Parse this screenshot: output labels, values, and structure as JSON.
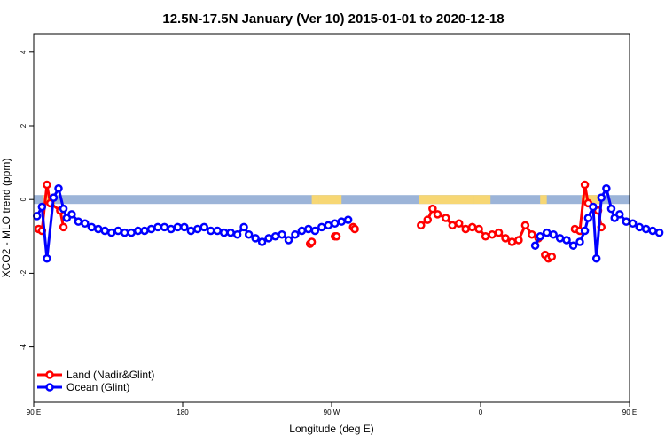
{
  "chart_data": {
    "type": "line",
    "title": "12.5N-17.5N January (Ver 10)   2015-01-01 to 2020-12-18",
    "xlabel": "Longitude (deg E)",
    "ylabel": "XCO2 - MLO trend (ppm)",
    "xlim": [
      90,
      450
    ],
    "ylim": [
      -5.5,
      4.5
    ],
    "x_ticks": [
      {
        "value": 90,
        "label": "90 E"
      },
      {
        "value": 180,
        "label": "180"
      },
      {
        "value": 270,
        "label": "90 W"
      },
      {
        "value": 360,
        "label": "0"
      },
      {
        "value": 450,
        "label": "90 E"
      },
      {
        "value": 540,
        "label": "180"
      }
    ],
    "y_ticks": [
      -4,
      -2,
      0,
      2,
      4
    ],
    "legend": {
      "position": "bottom-left",
      "entries": [
        {
          "label": "Land (Nadir&Glint)",
          "color": "#ff0000"
        },
        {
          "label": "Ocean (Glint)",
          "color": "#0000ff"
        }
      ]
    },
    "series": [
      {
        "name": "Land (Nadir&Glint)",
        "color": "#ff0000",
        "segments": [
          [
            [
              93,
              -0.8
            ],
            [
              95,
              -0.85
            ],
            [
              98,
              0.4
            ],
            [
              100,
              -0.1
            ],
            [
              106,
              -0.3
            ],
            [
              108,
              -0.75
            ]
          ],
          [
            [
              257,
              -1.2
            ],
            [
              258,
              -1.15
            ]
          ],
          [
            [
              272,
              -1.0
            ],
            [
              273,
              -1.0
            ]
          ],
          [
            [
              283,
              -0.75
            ],
            [
              284,
              -0.8
            ]
          ],
          [
            [
              324,
              -0.7
            ],
            [
              328,
              -0.55
            ],
            [
              331,
              -0.25
            ],
            [
              334,
              -0.4
            ],
            [
              339,
              -0.5
            ],
            [
              343,
              -0.7
            ],
            [
              347,
              -0.65
            ],
            [
              351,
              -0.8
            ],
            [
              355,
              -0.75
            ],
            [
              359,
              -0.8
            ],
            [
              363,
              -1.0
            ],
            [
              367,
              -0.95
            ],
            [
              371,
              -0.9
            ],
            [
              375,
              -1.05
            ],
            [
              379,
              -1.15
            ],
            [
              383,
              -1.1
            ],
            [
              387,
              -0.7
            ],
            [
              391,
              -0.95
            ],
            [
              395,
              -1.05
            ]
          ],
          [
            [
              399,
              -1.5
            ],
            [
              401,
              -1.6
            ],
            [
              403,
              -1.55
            ]
          ],
          [
            [
              417,
              -0.8
            ],
            [
              420,
              -0.85
            ],
            [
              423,
              0.4
            ],
            [
              425,
              -0.1
            ],
            [
              431,
              -0.3
            ],
            [
              433,
              -0.75
            ]
          ]
        ]
      },
      {
        "name": "Ocean (Glint)",
        "color": "#0000ff",
        "segments": [
          [
            [
              92,
              -0.45
            ],
            [
              95,
              -0.2
            ],
            [
              98,
              -1.6
            ],
            [
              102,
              0.05
            ],
            [
              105,
              0.3
            ],
            [
              108,
              -0.25
            ],
            [
              110,
              -0.5
            ],
            [
              113,
              -0.4
            ],
            [
              117,
              -0.6
            ],
            [
              121,
              -0.65
            ],
            [
              125,
              -0.75
            ],
            [
              129,
              -0.8
            ],
            [
              133,
              -0.85
            ],
            [
              137,
              -0.9
            ],
            [
              141,
              -0.85
            ],
            [
              145,
              -0.9
            ],
            [
              149,
              -0.9
            ],
            [
              153,
              -0.85
            ],
            [
              157,
              -0.85
            ],
            [
              161,
              -0.8
            ],
            [
              165,
              -0.75
            ],
            [
              169,
              -0.75
            ],
            [
              173,
              -0.8
            ],
            [
              177,
              -0.75
            ],
            [
              181,
              -0.75
            ],
            [
              185,
              -0.85
            ],
            [
              189,
              -0.8
            ],
            [
              193,
              -0.75
            ],
            [
              197,
              -0.85
            ],
            [
              201,
              -0.85
            ],
            [
              205,
              -0.9
            ],
            [
              209,
              -0.9
            ],
            [
              213,
              -0.95
            ],
            [
              217,
              -0.75
            ],
            [
              220,
              -0.95
            ],
            [
              224,
              -1.05
            ],
            [
              228,
              -1.15
            ],
            [
              232,
              -1.05
            ],
            [
              236,
              -1.0
            ],
            [
              240,
              -0.95
            ],
            [
              244,
              -1.1
            ],
            [
              248,
              -0.95
            ],
            [
              252,
              -0.85
            ],
            [
              256,
              -0.8
            ],
            [
              260,
              -0.85
            ],
            [
              264,
              -0.75
            ],
            [
              268,
              -0.7
            ],
            [
              272,
              -0.65
            ],
            [
              276,
              -0.6
            ],
            [
              280,
              -0.55
            ]
          ],
          [
            [
              393,
              -1.25
            ],
            [
              396,
              -1.0
            ],
            [
              400,
              -0.9
            ],
            [
              404,
              -0.95
            ],
            [
              408,
              -1.05
            ],
            [
              412,
              -1.1
            ],
            [
              416,
              -1.25
            ]
          ],
          [
            [
              420,
              -1.15
            ],
            [
              423,
              -0.85
            ],
            [
              425,
              -0.5
            ],
            [
              428,
              -0.2
            ],
            [
              430,
              -1.6
            ],
            [
              433,
              0.05
            ],
            [
              436,
              0.3
            ],
            [
              439,
              -0.25
            ],
            [
              441,
              -0.5
            ],
            [
              444,
              -0.4
            ],
            [
              448,
              -0.6
            ],
            [
              452,
              -0.65
            ],
            [
              456,
              -0.75
            ],
            [
              460,
              -0.8
            ],
            [
              464,
              -0.85
            ],
            [
              468,
              -0.9
            ]
          ]
        ]
      }
    ],
    "surface_bar": {
      "y_range": [
        -0.12,
        0.12
      ],
      "ocean_color": "#9cb4d8",
      "land_color": "#f7d774",
      "land_spans": [
        [
          96,
          103
        ],
        [
          258,
          262
        ],
        [
          262,
          276
        ],
        [
          323,
          356
        ],
        [
          356,
          366
        ],
        [
          396,
          400
        ],
        [
          421,
          433
        ]
      ]
    }
  }
}
